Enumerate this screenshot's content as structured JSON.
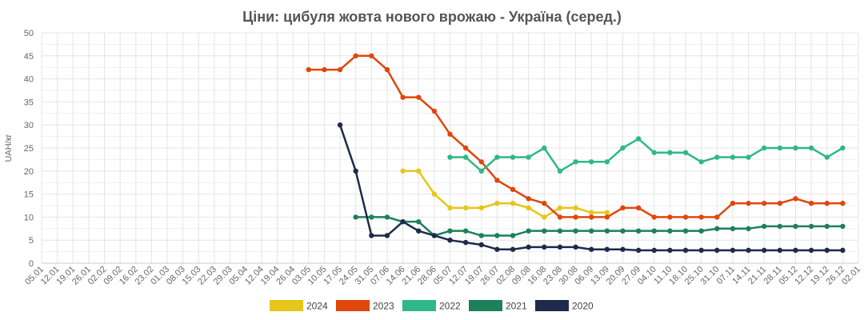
{
  "chart_data": {
    "type": "line",
    "title": "Ціни: цибуля жовта нового врожаю - Україна (серед.)",
    "ylabel": "UAH/кг",
    "xlabel": "",
    "ylim": [
      0,
      50
    ],
    "yticks": [
      0,
      5,
      10,
      15,
      20,
      25,
      30,
      35,
      40,
      45,
      50
    ],
    "grid": true,
    "legend": "bottom",
    "x": [
      "05.01",
      "12.01",
      "19.01",
      "26.01",
      "02.02",
      "09.02",
      "16.02",
      "23.02",
      "01.03",
      "08.03",
      "15.03",
      "22.03",
      "29.03",
      "05.04",
      "12.04",
      "19.04",
      "26.04",
      "03.05",
      "10.05",
      "17.05",
      "24.05",
      "31.05",
      "07.06",
      "14.06",
      "21.06",
      "28.06",
      "05.07",
      "12.07",
      "19.07",
      "26.07",
      "02.08",
      "09.08",
      "16.08",
      "23.08",
      "30.08",
      "06.09",
      "13.09",
      "20.09",
      "27.09",
      "04.10",
      "11.10",
      "18.10",
      "25.10",
      "31.10",
      "07.11",
      "14.11",
      "21.11",
      "28.11",
      "05.12",
      "12.12",
      "19.12",
      "26.12",
      "02.01"
    ],
    "series": [
      {
        "name": "2024",
        "color": "#e6c619",
        "values": [
          null,
          null,
          null,
          null,
          null,
          null,
          null,
          null,
          null,
          null,
          null,
          null,
          null,
          null,
          null,
          null,
          null,
          null,
          null,
          null,
          null,
          null,
          null,
          20,
          20,
          15,
          12,
          12,
          12,
          13,
          13,
          12,
          10,
          12,
          12,
          11,
          11,
          null,
          null,
          null,
          null,
          null,
          null,
          null,
          null,
          null,
          null,
          null,
          null,
          null,
          null,
          null,
          null
        ]
      },
      {
        "name": "2023",
        "color": "#e0470d",
        "values": [
          null,
          null,
          null,
          null,
          null,
          null,
          null,
          null,
          null,
          null,
          null,
          null,
          null,
          null,
          null,
          null,
          null,
          42,
          42,
          42,
          45,
          45,
          42,
          36,
          36,
          33,
          28,
          25,
          22,
          18,
          16,
          14,
          13,
          10,
          10,
          10,
          10,
          12,
          12,
          10,
          10,
          10,
          10,
          10,
          13,
          13,
          13,
          13,
          14,
          13,
          13,
          13,
          null
        ]
      },
      {
        "name": "2022",
        "color": "#2fb887",
        "values": [
          null,
          null,
          null,
          null,
          null,
          null,
          null,
          null,
          null,
          null,
          null,
          null,
          null,
          null,
          null,
          null,
          null,
          null,
          null,
          null,
          null,
          null,
          null,
          null,
          null,
          null,
          23,
          23,
          20,
          23,
          23,
          23,
          25,
          20,
          22,
          22,
          22,
          25,
          27,
          24,
          24,
          24,
          22,
          23,
          23,
          23,
          25,
          25,
          25,
          25,
          23,
          25,
          null
        ]
      },
      {
        "name": "2021",
        "color": "#1d8059",
        "values": [
          null,
          null,
          null,
          null,
          null,
          null,
          null,
          null,
          null,
          null,
          null,
          null,
          null,
          null,
          null,
          null,
          null,
          null,
          null,
          null,
          10,
          10,
          10,
          9,
          9,
          6,
          7,
          7,
          6,
          6,
          6,
          7,
          7,
          7,
          7,
          7,
          7,
          7,
          7,
          7,
          7,
          7,
          7,
          7.5,
          7.5,
          7.5,
          8,
          8,
          8,
          8,
          8,
          8,
          null
        ]
      },
      {
        "name": "2020",
        "color": "#1f2a4a",
        "values": [
          null,
          null,
          null,
          null,
          null,
          null,
          null,
          null,
          null,
          null,
          null,
          null,
          null,
          null,
          null,
          null,
          null,
          null,
          null,
          30,
          20,
          6,
          6,
          9,
          7,
          6,
          5,
          4.5,
          4,
          3,
          3,
          3.5,
          3.5,
          3.5,
          3.5,
          3,
          3,
          3,
          2.8,
          2.8,
          2.8,
          2.8,
          2.8,
          2.8,
          2.8,
          2.8,
          2.8,
          2.8,
          2.8,
          2.8,
          2.8,
          2.8,
          null
        ]
      }
    ]
  }
}
